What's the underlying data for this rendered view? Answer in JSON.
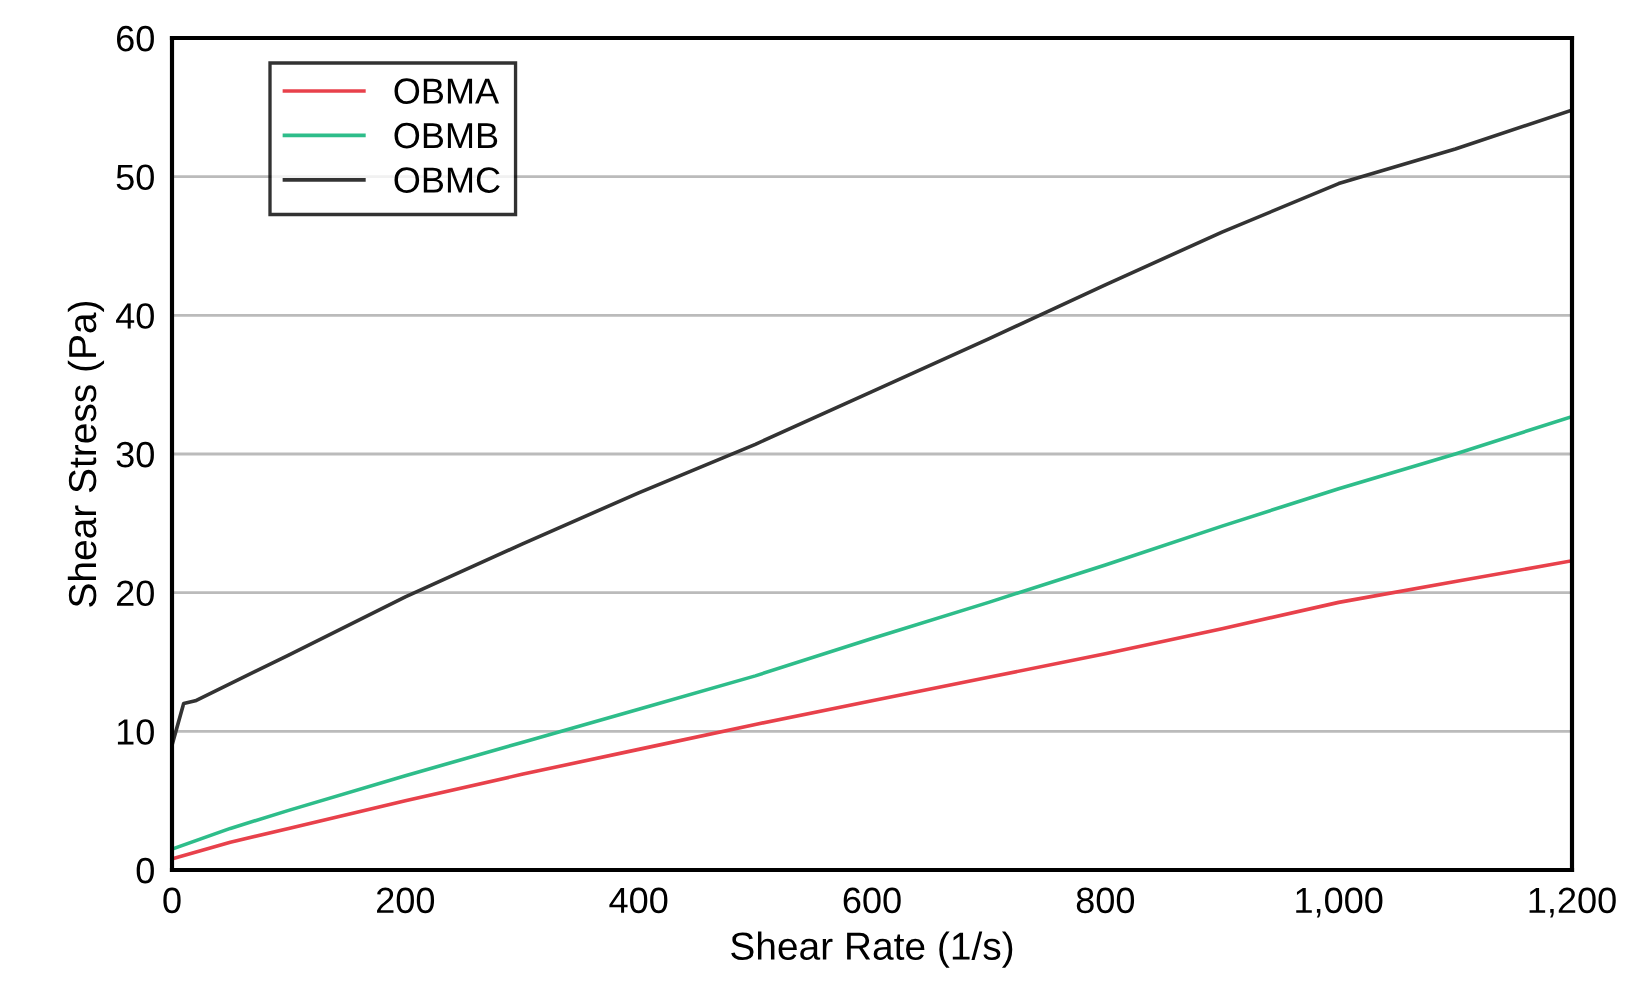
{
  "chart_data": {
    "type": "line",
    "xlabel": "Shear Rate (1/s)",
    "ylabel": "Shear Stress (Pa)",
    "xlim": [
      0,
      1200
    ],
    "ylim": [
      0,
      60
    ],
    "xticks": [
      0,
      200,
      400,
      600,
      800,
      {
        "value": 1000,
        "label": "1,000"
      },
      {
        "value": 1200,
        "label": "1,200"
      }
    ],
    "yticks": [
      0,
      10,
      20,
      30,
      40,
      50,
      60
    ],
    "grid": "y",
    "legend": "top left",
    "series": [
      {
        "name": "OBMA",
        "color": "#e8414b",
        "x": [
          0,
          50,
          100,
          200,
          300,
          400,
          500,
          600,
          700,
          800,
          900,
          1000,
          1100,
          1200
        ],
        "values": [
          0.8,
          2,
          3,
          5,
          6.9,
          8.7,
          10.5,
          12.2,
          13.9,
          15.6,
          17.4,
          19.3,
          20.8,
          22.3
        ]
      },
      {
        "name": "OBMB",
        "color": "#2ebd8a",
        "x": [
          0,
          50,
          100,
          200,
          300,
          400,
          500,
          600,
          700,
          800,
          900,
          1000,
          1100,
          1200
        ],
        "values": [
          1.5,
          3,
          4.3,
          6.8,
          9.2,
          11.6,
          14,
          16.7,
          19.3,
          22,
          24.8,
          27.5,
          30,
          32.7
        ]
      },
      {
        "name": "OBMC",
        "color": "#333333",
        "x": [
          0,
          10,
          20,
          100,
          200,
          300,
          400,
          500,
          600,
          700,
          800,
          900,
          1000,
          1100,
          1200
        ],
        "values": [
          9,
          12,
          12.2,
          15.5,
          19.7,
          23.5,
          27.2,
          30.7,
          34.5,
          38.3,
          42.2,
          46,
          49.5,
          52,
          54.8
        ]
      }
    ]
  }
}
